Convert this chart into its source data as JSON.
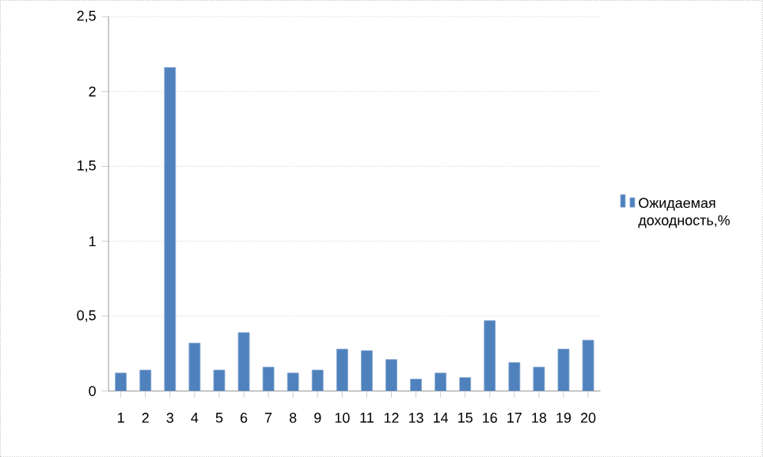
{
  "chart_data": {
    "type": "bar",
    "categories": [
      "1",
      "2",
      "3",
      "4",
      "5",
      "6",
      "7",
      "8",
      "9",
      "10",
      "11",
      "12",
      "13",
      "14",
      "15",
      "16",
      "17",
      "18",
      "19",
      "20"
    ],
    "series": [
      {
        "name": "Ожидаемая доходность,%",
        "color": "#4f81bd",
        "values": [
          0.12,
          0.14,
          2.16,
          0.32,
          0.14,
          0.39,
          0.16,
          0.12,
          0.14,
          0.28,
          0.27,
          0.21,
          0.08,
          0.12,
          0.09,
          0.47,
          0.19,
          0.16,
          0.28,
          0.34
        ]
      }
    ],
    "ylim": [
      0,
      2.5
    ],
    "yticks": [
      {
        "value": 0,
        "label": "0"
      },
      {
        "value": 0.5,
        "label": "0,5"
      },
      {
        "value": 1,
        "label": "1"
      },
      {
        "value": 1.5,
        "label": "1,5"
      },
      {
        "value": 2,
        "label": "2"
      },
      {
        "value": 2.5,
        "label": "2,5"
      }
    ],
    "grid": "y",
    "legend": "right"
  }
}
